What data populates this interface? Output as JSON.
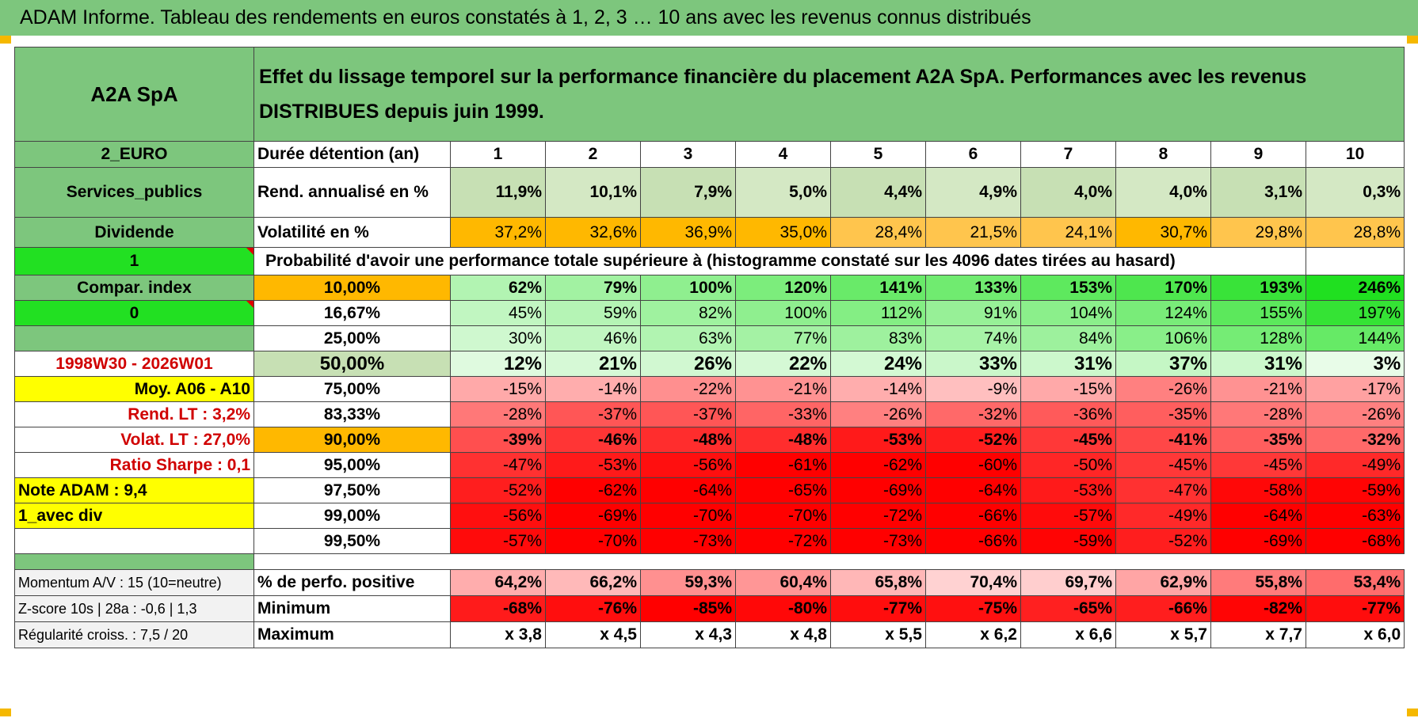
{
  "title": "ADAM Informe. Tableau des rendements en euros constatés à 1, 2, 3 … 10 ans avec les revenus connus distribués",
  "header": {
    "name": "A2A SpA",
    "description": "Effet du lissage temporel sur la performance financière du placement A2A SpA. Performances avec les revenus DISTRIBUES depuis juin 1999."
  },
  "left_labels": {
    "currency": "2_EURO",
    "sector": "Services_publics",
    "income": "Dividende",
    "flag1": "1",
    "compar_index": "Compar. index",
    "flag2": "0",
    "empty": "",
    "period": "1998W30 - 2026W01",
    "moy": "Moy. A06 - A10",
    "rend_lt": "Rend. LT :   3,2%",
    "volat_lt": "Volat. LT :   27,0%",
    "sharpe": "Ratio Sharpe :    0,1",
    "note": "Note ADAM : 9,4",
    "avec_div": "1_avec div",
    "momentum": "Momentum A/V : 15 (10=neutre)",
    "zscore": "Z-score 10s | 28a : -0,6 | 1,3",
    "regularite": "Régularité croiss. : 7,5 / 20"
  },
  "row_labels": {
    "duree": "Durée détention (an)",
    "rend": "Rend. annualisé en %",
    "volat": "Volatilité en %",
    "proba": "Probabilité d'avoir une performance totale supérieure à (histogramme constaté sur les 4096 dates tirées au hasard)",
    "pct_pos": "% de perfo. positive",
    "minimum": "Minimum",
    "maximum": "Maximum"
  },
  "years": [
    "1",
    "2",
    "3",
    "4",
    "5",
    "6",
    "7",
    "8",
    "9",
    "10"
  ],
  "rend_annualise": [
    "11,9%",
    "10,1%",
    "7,9%",
    "5,0%",
    "4,4%",
    "4,9%",
    "4,0%",
    "4,0%",
    "3,1%",
    "0,3%"
  ],
  "volatilite": [
    "37,2%",
    "32,6%",
    "36,9%",
    "35,0%",
    "28,4%",
    "21,5%",
    "24,1%",
    "30,7%",
    "29,8%",
    "28,8%"
  ],
  "percentile_rows": [
    {
      "p": "10,00%",
      "values": [
        "62%",
        "79%",
        "100%",
        "120%",
        "141%",
        "133%",
        "153%",
        "170%",
        "193%",
        "246%"
      ]
    },
    {
      "p": "16,67%",
      "values": [
        "45%",
        "59%",
        "82%",
        "100%",
        "112%",
        "91%",
        "104%",
        "124%",
        "155%",
        "197%"
      ]
    },
    {
      "p": "25,00%",
      "values": [
        "30%",
        "46%",
        "63%",
        "77%",
        "83%",
        "74%",
        "84%",
        "106%",
        "128%",
        "144%"
      ]
    },
    {
      "p": "50,00%",
      "values": [
        "12%",
        "21%",
        "26%",
        "22%",
        "24%",
        "33%",
        "31%",
        "37%",
        "31%",
        "3%"
      ]
    },
    {
      "p": "75,00%",
      "values": [
        "-15%",
        "-14%",
        "-22%",
        "-21%",
        "-14%",
        "-9%",
        "-15%",
        "-26%",
        "-21%",
        "-17%"
      ]
    },
    {
      "p": "83,33%",
      "values": [
        "-28%",
        "-37%",
        "-37%",
        "-33%",
        "-26%",
        "-32%",
        "-36%",
        "-35%",
        "-28%",
        "-26%"
      ]
    },
    {
      "p": "90,00%",
      "values": [
        "-39%",
        "-46%",
        "-48%",
        "-48%",
        "-53%",
        "-52%",
        "-45%",
        "-41%",
        "-35%",
        "-32%"
      ]
    },
    {
      "p": "95,00%",
      "values": [
        "-47%",
        "-53%",
        "-56%",
        "-61%",
        "-62%",
        "-60%",
        "-50%",
        "-45%",
        "-45%",
        "-49%"
      ]
    },
    {
      "p": "97,50%",
      "values": [
        "-52%",
        "-62%",
        "-64%",
        "-65%",
        "-69%",
        "-64%",
        "-53%",
        "-47%",
        "-58%",
        "-59%"
      ]
    },
    {
      "p": "99,00%",
      "values": [
        "-56%",
        "-69%",
        "-70%",
        "-70%",
        "-72%",
        "-66%",
        "-57%",
        "-49%",
        "-64%",
        "-63%"
      ]
    },
    {
      "p": "99,50%",
      "values": [
        "-57%",
        "-70%",
        "-73%",
        "-72%",
        "-73%",
        "-66%",
        "-59%",
        "-52%",
        "-69%",
        "-68%"
      ]
    }
  ],
  "pct_positive": [
    "64,2%",
    "66,2%",
    "59,3%",
    "60,4%",
    "65,8%",
    "70,4%",
    "69,7%",
    "62,9%",
    "55,8%",
    "53,4%"
  ],
  "minimum": [
    "-68%",
    "-76%",
    "-85%",
    "-80%",
    "-77%",
    "-75%",
    "-65%",
    "-66%",
    "-82%",
    "-77%"
  ],
  "maximum": [
    "x 3,8",
    "x 4,5",
    "x 4,3",
    "x 4,8",
    "x 5,5",
    "x 6,2",
    "x 6,6",
    "x 5,7",
    "x 7,7",
    "x 6,0"
  ],
  "colors": {
    "header_green": "#7dc67d",
    "bright_green": "#22e022",
    "yellow": "#ffff00",
    "orange": "#ffb800",
    "red": "#ff0000",
    "label_red": "#d00000"
  }
}
